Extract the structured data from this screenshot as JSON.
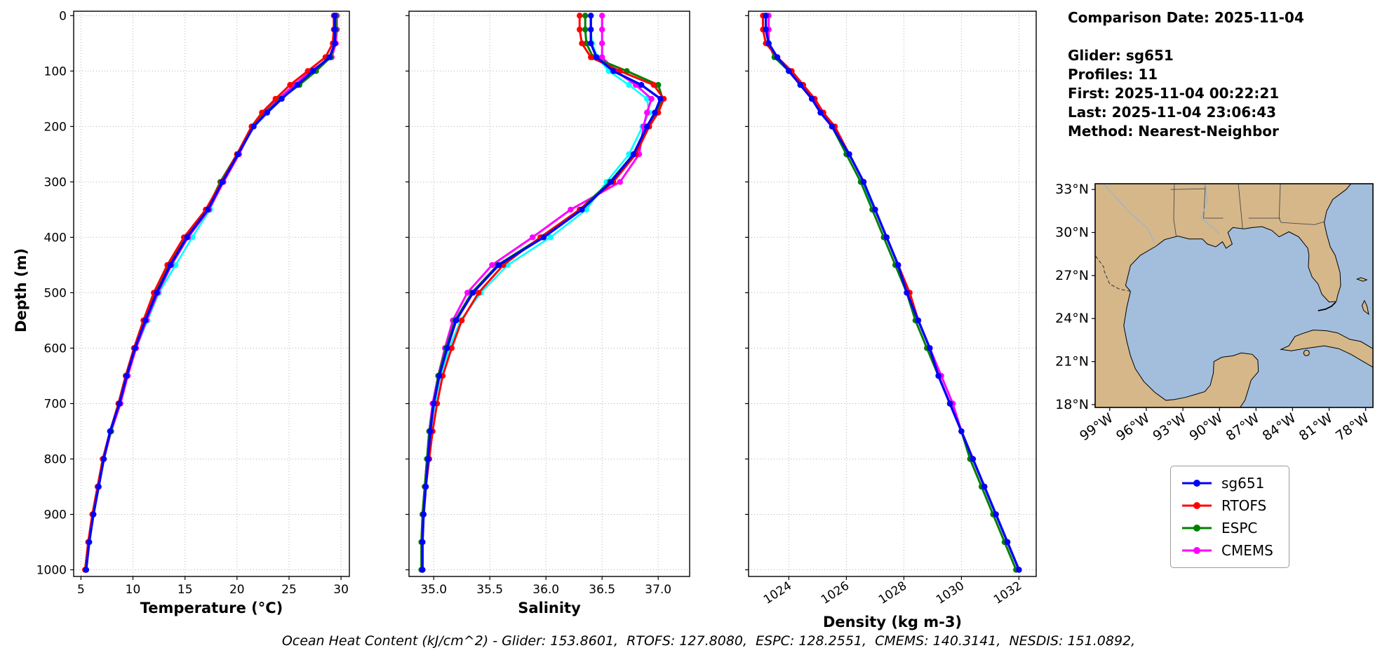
{
  "info": {
    "comparison_date": "Comparison Date: 2025-11-04",
    "glider": "Glider: sg651",
    "profiles": "Profiles: 11",
    "first": "First: 2025-11-04 00:22:21",
    "last": "Last: 2025-11-04 23:06:43",
    "method": "Method: Nearest-Neighbor"
  },
  "charts_shared": {
    "ylabel": "Depth (m)",
    "depth_ticks": [
      0,
      100,
      200,
      300,
      400,
      500,
      600,
      700,
      800,
      900,
      1000
    ],
    "depths": [
      0,
      25,
      50,
      75,
      100,
      125,
      150,
      175,
      200,
      250,
      300,
      350,
      400,
      450,
      500,
      550,
      600,
      650,
      700,
      750,
      800,
      850,
      900,
      950,
      1000
    ]
  },
  "chart_data": [
    {
      "type": "line",
      "title": "",
      "xlabel": "Temperature (°C)",
      "ylabel": "Depth (m)",
      "orientation": "vertical-profile (y = depth, increasing downward)",
      "grid": true,
      "xlim": [
        4.3,
        30.8
      ],
      "ylim": [
        0,
        1000
      ],
      "xticks": [
        5,
        10,
        15,
        20,
        25,
        30
      ],
      "xtick_labels": [
        "5",
        "10",
        "15",
        "20",
        "25",
        "30"
      ],
      "series": [
        {
          "name": "sg651",
          "color": "#0000ff",
          "in_legend": true,
          "width": 3.4,
          "values": [
            29.4,
            29.4,
            29.4,
            28.9,
            27.3,
            25.8,
            24.3,
            22.9,
            21.6,
            20.1,
            18.6,
            17.2,
            15.2,
            13.6,
            12.3,
            11.2,
            10.2,
            9.4,
            8.7,
            7.8,
            7.2,
            6.7,
            6.2,
            5.8,
            5.5
          ]
        },
        {
          "name": "RTOFS",
          "color": "#ff0000",
          "in_legend": true,
          "width": 3,
          "values": [
            29.3,
            29.3,
            29.2,
            28.5,
            26.8,
            25.1,
            23.7,
            22.4,
            21.4,
            20.0,
            18.5,
            17.0,
            14.9,
            13.3,
            12.0,
            11.0,
            10.1,
            9.3,
            8.6,
            7.8,
            7.1,
            6.6,
            6.1,
            5.7,
            5.4
          ]
        },
        {
          "name": "ESPC",
          "color": "#008000",
          "in_legend": true,
          "width": 3,
          "values": [
            29.5,
            29.5,
            29.4,
            29.0,
            27.6,
            26.0,
            24.2,
            22.7,
            21.5,
            20.0,
            18.4,
            17.1,
            15.0,
            13.5,
            12.1,
            11.1,
            10.1,
            9.3,
            8.6,
            7.9,
            7.1,
            6.6,
            6.1,
            5.7,
            5.4
          ]
        },
        {
          "name": "CMEMS",
          "color": "#ff00ff",
          "in_legend": true,
          "width": 3,
          "values": [
            29.6,
            29.6,
            29.5,
            29.1,
            27.1,
            25.5,
            24.0,
            22.6,
            21.5,
            20.2,
            18.7,
            17.3,
            15.3,
            13.7,
            12.4,
            11.3,
            10.3,
            9.5,
            8.8,
            7.9,
            7.2,
            6.7,
            6.1,
            5.7,
            5.5
          ]
        },
        {
          "name": "NESDIS",
          "color": "#00ffff",
          "in_legend": false,
          "width": 2.6,
          "values": [
            29.5,
            29.5,
            29.4,
            29.0,
            27.4,
            25.7,
            24.1,
            22.8,
            21.6,
            20.1,
            18.6,
            17.4,
            15.7,
            14.1,
            12.5,
            11.4,
            10.3,
            9.5,
            8.8,
            7.9,
            7.2,
            6.7,
            6.2,
            5.8,
            5.5
          ]
        }
      ]
    },
    {
      "type": "line",
      "title": "",
      "xlabel": "Salinity",
      "ylabel": "Depth (m)",
      "orientation": "vertical-profile (y = depth, increasing downward)",
      "grid": true,
      "xlim": [
        34.78,
        37.28
      ],
      "ylim": [
        0,
        1000
      ],
      "xticks": [
        35.0,
        35.5,
        36.0,
        36.5,
        37.0
      ],
      "xtick_labels": [
        "35.0",
        "35.5",
        "36.0",
        "36.5",
        "37.0"
      ],
      "series": [
        {
          "name": "sg651",
          "color": "#0000ff",
          "in_legend": true,
          "width": 3.4,
          "values": [
            36.4,
            36.4,
            36.4,
            36.45,
            36.6,
            36.85,
            37.02,
            36.97,
            36.9,
            36.78,
            36.58,
            36.32,
            35.98,
            35.58,
            35.35,
            35.2,
            35.12,
            35.05,
            35.0,
            34.97,
            34.95,
            34.93,
            34.91,
            34.9,
            34.9
          ]
        },
        {
          "name": "RTOFS",
          "color": "#ff0000",
          "in_legend": true,
          "width": 3,
          "values": [
            36.3,
            36.3,
            36.32,
            36.4,
            36.66,
            36.96,
            37.05,
            37.0,
            36.92,
            36.8,
            36.6,
            36.3,
            35.95,
            35.62,
            35.4,
            35.25,
            35.16,
            35.08,
            35.03,
            34.99,
            34.96,
            34.93,
            34.91,
            34.9,
            34.9
          ]
        },
        {
          "name": "ESPC",
          "color": "#008000",
          "in_legend": true,
          "width": 3,
          "values": [
            36.35,
            36.35,
            36.36,
            36.42,
            36.72,
            37.0,
            37.04,
            36.98,
            36.9,
            36.78,
            36.57,
            36.3,
            35.96,
            35.57,
            35.34,
            35.19,
            35.11,
            35.04,
            35.0,
            34.96,
            34.94,
            34.92,
            34.9,
            34.89,
            34.89
          ]
        },
        {
          "name": "CMEMS",
          "color": "#ff00ff",
          "in_legend": true,
          "width": 3,
          "values": [
            36.5,
            36.5,
            36.5,
            36.5,
            36.62,
            36.8,
            36.94,
            36.9,
            36.87,
            36.83,
            36.66,
            36.22,
            35.88,
            35.52,
            35.3,
            35.17,
            35.1,
            35.04,
            34.99,
            34.96,
            34.94,
            34.92,
            34.9,
            34.9,
            34.9
          ]
        },
        {
          "name": "NESDIS",
          "color": "#00ffff",
          "in_legend": false,
          "width": 2.6,
          "values": [
            36.4,
            36.4,
            36.41,
            36.46,
            36.56,
            36.74,
            36.9,
            36.92,
            36.86,
            36.74,
            36.54,
            36.36,
            36.04,
            35.66,
            35.42,
            35.24,
            35.14,
            35.06,
            35.01,
            34.97,
            34.95,
            34.93,
            34.91,
            34.9,
            34.9
          ]
        }
      ]
    },
    {
      "type": "line",
      "title": "",
      "xlabel": "Density (kg m-3)",
      "ylabel": "Depth (m)",
      "orientation": "vertical-profile (y = depth, increasing downward)",
      "grid": true,
      "xlim": [
        1022.6,
        1032.6
      ],
      "ylim": [
        0,
        1000
      ],
      "xticks": [
        1024,
        1026,
        1028,
        1030,
        1032
      ],
      "xtick_labels": [
        "1024",
        "1026",
        "1028",
        "1030",
        "1032"
      ],
      "series": [
        {
          "name": "sg651",
          "color": "#0000ff",
          "in_legend": true,
          "width": 3.4,
          "values": [
            1023.2,
            1023.2,
            1023.3,
            1023.6,
            1024.0,
            1024.4,
            1024.8,
            1025.1,
            1025.5,
            1026.1,
            1026.6,
            1027.0,
            1027.4,
            1027.8,
            1028.1,
            1028.5,
            1028.9,
            1029.2,
            1029.6,
            1030.0,
            1030.4,
            1030.8,
            1031.2,
            1031.6,
            1032.0
          ]
        },
        {
          "name": "RTOFS",
          "color": "#ff0000",
          "in_legend": true,
          "width": 3,
          "values": [
            1023.1,
            1023.1,
            1023.2,
            1023.6,
            1024.1,
            1024.5,
            1024.9,
            1025.2,
            1025.6,
            1026.1,
            1026.6,
            1027.0,
            1027.4,
            1027.8,
            1028.2,
            1028.5,
            1028.9,
            1029.2,
            1029.6,
            1030.0,
            1030.4,
            1030.8,
            1031.2,
            1031.6,
            1032.0
          ]
        },
        {
          "name": "ESPC",
          "color": "#008000",
          "in_legend": true,
          "width": 3,
          "values": [
            1023.2,
            1023.2,
            1023.3,
            1023.5,
            1024.0,
            1024.4,
            1024.8,
            1025.1,
            1025.5,
            1026.0,
            1026.5,
            1026.9,
            1027.3,
            1027.7,
            1028.1,
            1028.4,
            1028.8,
            1029.2,
            1029.6,
            1030.0,
            1030.3,
            1030.7,
            1031.1,
            1031.5,
            1031.9
          ]
        },
        {
          "name": "CMEMS",
          "color": "#ff00ff",
          "in_legend": true,
          "width": 3,
          "values": [
            1023.3,
            1023.3,
            1023.3,
            1023.6,
            1024.0,
            1024.4,
            1024.8,
            1025.2,
            1025.5,
            1026.1,
            1026.6,
            1027.0,
            1027.4,
            1027.8,
            1028.2,
            1028.5,
            1028.9,
            1029.3,
            1029.7,
            1030.0,
            1030.4,
            1030.8,
            1031.2,
            1031.6,
            1032.0
          ]
        },
        {
          "name": "NESDIS",
          "color": "#00ffff",
          "in_legend": false,
          "width": 2.6,
          "values": [
            1023.2,
            1023.2,
            1023.3,
            1023.6,
            1024.0,
            1024.4,
            1024.8,
            1025.1,
            1025.5,
            1026.0,
            1026.5,
            1027.0,
            1027.4,
            1027.8,
            1028.1,
            1028.5,
            1028.9,
            1029.2,
            1029.6,
            1030.0,
            1030.4,
            1030.8,
            1031.2,
            1031.6,
            1032.0
          ]
        }
      ]
    }
  ],
  "map": {
    "region": "Gulf of Mexico",
    "land_color": "#d5b78a",
    "water_color": "#a3bedc",
    "lat_ticks": [
      {
        "value": 33,
        "label": "33°N"
      },
      {
        "value": 30,
        "label": "30°N"
      },
      {
        "value": 27,
        "label": "27°N"
      },
      {
        "value": 24,
        "label": "24°N"
      },
      {
        "value": 21,
        "label": "21°N"
      },
      {
        "value": 18,
        "label": "18°N"
      }
    ],
    "lon_ticks": [
      {
        "value": -99,
        "label": "99°W"
      },
      {
        "value": -96,
        "label": "96°W"
      },
      {
        "value": -93,
        "label": "93°W"
      },
      {
        "value": -90,
        "label": "90°W"
      },
      {
        "value": -87,
        "label": "87°W"
      },
      {
        "value": -84,
        "label": "84°W"
      },
      {
        "value": -81,
        "label": "81°W"
      },
      {
        "value": -78,
        "label": "78°W"
      }
    ]
  },
  "legend": {
    "entries": [
      {
        "label": "sg651",
        "color": "#0000ff"
      },
      {
        "label": "RTOFS",
        "color": "#ff0000"
      },
      {
        "label": "ESPC",
        "color": "#008000"
      },
      {
        "label": "CMEMS",
        "color": "#ff00ff"
      }
    ]
  },
  "footer": {
    "text": "Ocean Heat Content (kJ/cm^2) - Glider: 153.8601,  RTOFS: 127.8080,  ESPC: 128.2551,  CMEMS: 140.3141,  NESDIS: 151.0892,",
    "ocean_heat_content_kj_cm2": {
      "Glider": 153.8601,
      "RTOFS": 127.808,
      "ESPC": 128.2551,
      "CMEMS": 140.3141,
      "NESDIS": 151.0892
    }
  }
}
